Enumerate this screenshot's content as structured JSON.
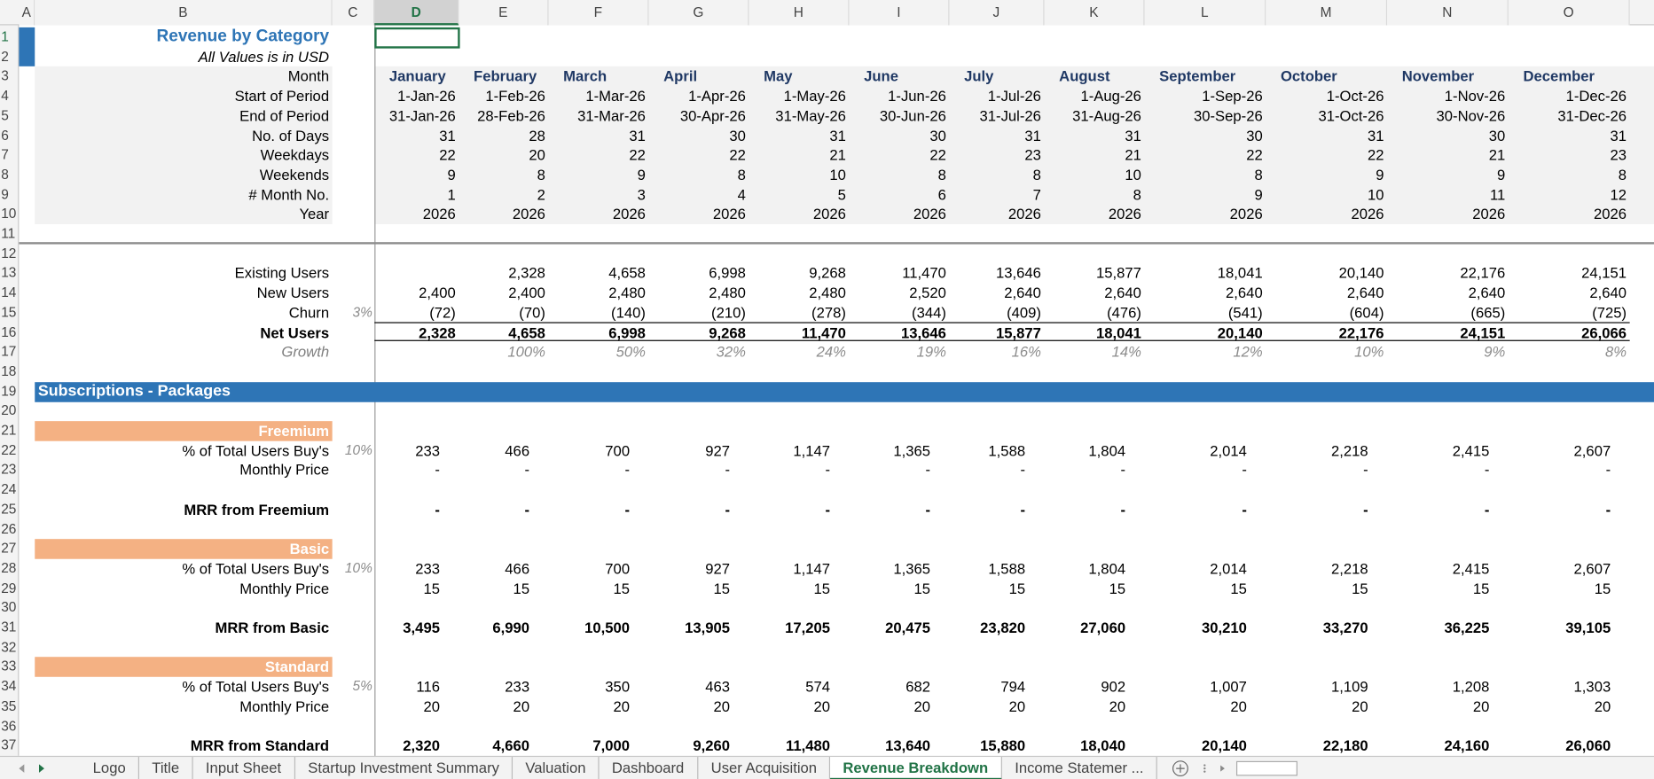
{
  "grid": {
    "columns": [
      "A",
      "B",
      "C",
      "D",
      "E",
      "F",
      "G",
      "H",
      "I",
      "J",
      "K",
      "L",
      "M",
      "N",
      "O"
    ],
    "row_numbers": [
      1,
      2,
      3,
      4,
      5,
      6,
      7,
      8,
      9,
      10,
      11,
      12,
      13,
      14,
      15,
      16,
      17,
      18,
      19,
      20,
      21,
      22,
      23,
      24,
      25,
      26,
      27,
      28,
      29,
      30,
      31,
      32,
      33,
      34,
      35,
      36,
      37
    ]
  },
  "sheet": {
    "title": "Revenue by Category",
    "subtitle": "All Values is in USD",
    "rows": {
      "3": {
        "label": "Month",
        "values": [
          "January",
          "February",
          "March",
          "April",
          "May",
          "June",
          "July",
          "August",
          "September",
          "October",
          "November",
          "December"
        ]
      },
      "4": {
        "label": "Start of Period",
        "values": [
          "1-Jan-26",
          "1-Feb-26",
          "1-Mar-26",
          "1-Apr-26",
          "1-May-26",
          "1-Jun-26",
          "1-Jul-26",
          "1-Aug-26",
          "1-Sep-26",
          "1-Oct-26",
          "1-Nov-26",
          "1-Dec-26"
        ]
      },
      "5": {
        "label": "End of Period",
        "values": [
          "31-Jan-26",
          "28-Feb-26",
          "31-Mar-26",
          "30-Apr-26",
          "31-May-26",
          "30-Jun-26",
          "31-Jul-26",
          "31-Aug-26",
          "30-Sep-26",
          "31-Oct-26",
          "30-Nov-26",
          "31-Dec-26"
        ]
      },
      "6": {
        "label": "No. of Days",
        "values": [
          "31",
          "28",
          "31",
          "30",
          "31",
          "30",
          "31",
          "31",
          "30",
          "31",
          "30",
          "31"
        ]
      },
      "7": {
        "label": "Weekdays",
        "values": [
          "22",
          "20",
          "22",
          "22",
          "21",
          "22",
          "23",
          "21",
          "22",
          "22",
          "21",
          "23"
        ]
      },
      "8": {
        "label": "Weekends",
        "values": [
          "9",
          "8",
          "9",
          "8",
          "10",
          "8",
          "8",
          "10",
          "8",
          "9",
          "9",
          "8"
        ]
      },
      "9": {
        "label": "# Month No.",
        "values": [
          "1",
          "2",
          "3",
          "4",
          "5",
          "6",
          "7",
          "8",
          "9",
          "10",
          "11",
          "12"
        ]
      },
      "10": {
        "label": "Year",
        "values": [
          "2026",
          "2026",
          "2026",
          "2026",
          "2026",
          "2026",
          "2026",
          "2026",
          "2026",
          "2026",
          "2026",
          "2026"
        ]
      },
      "13": {
        "label": "Existing Users",
        "values": [
          null,
          "2,328",
          "4,658",
          "6,998",
          "9,268",
          "11,470",
          "13,646",
          "15,877",
          "18,041",
          "20,140",
          "22,176",
          "24,151"
        ]
      },
      "14": {
        "label": "New Users",
        "values": [
          "2,400",
          "2,400",
          "2,480",
          "2,480",
          "2,480",
          "2,520",
          "2,640",
          "2,640",
          "2,640",
          "2,640",
          "2,640",
          "2,640"
        ]
      },
      "15": {
        "label": "Churn",
        "note": "3%",
        "values": [
          "(72)",
          "(70)",
          "(140)",
          "(210)",
          "(278)",
          "(344)",
          "(409)",
          "(476)",
          "(541)",
          "(604)",
          "(665)",
          "(725)"
        ]
      },
      "16": {
        "label": "Net Users",
        "values": [
          "2,328",
          "4,658",
          "6,998",
          "9,268",
          "11,470",
          "13,646",
          "15,877",
          "18,041",
          "20,140",
          "22,176",
          "24,151",
          "26,066"
        ]
      },
      "17": {
        "label": "Growth",
        "values": [
          null,
          "100%",
          "50%",
          "32%",
          "24%",
          "19%",
          "16%",
          "14%",
          "12%",
          "10%",
          "9%",
          "8%"
        ]
      },
      "22": {
        "label": "% of  Total Users  Buy's",
        "note": "10%",
        "values": [
          "233",
          "466",
          "700",
          "927",
          "1,147",
          "1,365",
          "1,588",
          "1,804",
          "2,014",
          "2,218",
          "2,415",
          "2,607"
        ]
      },
      "23": {
        "label": "Monthly Price",
        "values": [
          "-",
          "-",
          "-",
          "-",
          "-",
          "-",
          "-",
          "-",
          "-",
          "-",
          "-",
          "-"
        ]
      },
      "25": {
        "label": "MRR from Freemium",
        "values": [
          "-",
          "-",
          "-",
          "-",
          "-",
          "-",
          "-",
          "-",
          "-",
          "-",
          "-",
          "-"
        ]
      },
      "28": {
        "label": "% of  Total Users  Buy's",
        "note": "10%",
        "values": [
          "233",
          "466",
          "700",
          "927",
          "1,147",
          "1,365",
          "1,588",
          "1,804",
          "2,014",
          "2,218",
          "2,415",
          "2,607"
        ]
      },
      "29": {
        "label": "Monthly Price",
        "values": [
          "15",
          "15",
          "15",
          "15",
          "15",
          "15",
          "15",
          "15",
          "15",
          "15",
          "15",
          "15"
        ]
      },
      "31": {
        "label": "MRR from Basic",
        "values": [
          "3,495",
          "6,990",
          "10,500",
          "13,905",
          "17,205",
          "20,475",
          "23,820",
          "27,060",
          "30,210",
          "33,270",
          "36,225",
          "39,105"
        ]
      },
      "34": {
        "label": "% of  Total Users  Buy's",
        "note": "5%",
        "values": [
          "116",
          "233",
          "350",
          "463",
          "574",
          "682",
          "794",
          "902",
          "1,007",
          "1,109",
          "1,208",
          "1,303"
        ]
      },
      "35": {
        "label": "Monthly Price",
        "values": [
          "20",
          "20",
          "20",
          "20",
          "20",
          "20",
          "20",
          "20",
          "20",
          "20",
          "20",
          "20"
        ]
      },
      "37": {
        "label": "MRR from Standard",
        "values": [
          "2,320",
          "4,660",
          "7,000",
          "9,260",
          "11,480",
          "13,640",
          "15,880",
          "18,040",
          "20,140",
          "22,180",
          "24,160",
          "26,060"
        ]
      }
    },
    "sections": {
      "19": "Subscriptions - Packages"
    },
    "groups": {
      "21": "Freemium",
      "27": "Basic",
      "33": "Standard"
    }
  },
  "tabs": {
    "items": [
      "Logo",
      "Title",
      "Input Sheet",
      "Startup Investment Summary",
      "Valuation",
      "Dashboard",
      "User Acquisition",
      "Revenue Breakdown",
      "Income Statemer ..."
    ],
    "active": 7
  }
}
